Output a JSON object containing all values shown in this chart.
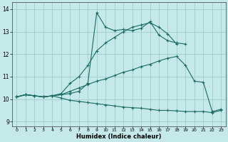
{
  "xlabel": "Humidex (Indice chaleur)",
  "background_color": "#c5e8e8",
  "grid_color": "#a0cccc",
  "line_color": "#1a6b62",
  "xlim": [
    -0.5,
    23.5
  ],
  "ylim": [
    8.8,
    14.3
  ],
  "yticks": [
    9,
    10,
    11,
    12,
    13,
    14
  ],
  "xticks": [
    0,
    1,
    2,
    3,
    4,
    5,
    6,
    7,
    8,
    9,
    10,
    11,
    12,
    13,
    14,
    15,
    16,
    17,
    18,
    19,
    20,
    21,
    22,
    23
  ],
  "lines": [
    {
      "x": [
        0,
        1,
        2,
        3,
        4,
        5,
        6,
        7,
        8,
        9,
        10,
        11,
        12,
        13,
        14,
        15,
        16,
        17,
        18,
        19
      ],
      "y": [
        10.1,
        10.2,
        10.15,
        10.1,
        10.15,
        10.2,
        10.25,
        10.35,
        10.7,
        13.85,
        13.2,
        13.05,
        13.1,
        13.05,
        13.15,
        13.45,
        12.85,
        12.6,
        12.5,
        12.45
      ]
    },
    {
      "x": [
        0,
        1,
        2,
        3,
        4,
        5,
        6,
        7,
        8,
        9,
        10,
        11,
        12,
        13,
        14,
        15,
        16,
        17,
        18
      ],
      "y": [
        10.1,
        10.2,
        10.15,
        10.1,
        10.15,
        10.25,
        10.7,
        11.0,
        11.5,
        12.15,
        12.5,
        12.75,
        13.0,
        13.2,
        13.3,
        13.4,
        13.2,
        12.9,
        12.45
      ]
    },
    {
      "x": [
        0,
        1,
        2,
        3,
        4,
        5,
        6,
        7,
        8,
        9,
        10,
        11,
        12,
        13,
        14,
        15,
        16,
        17,
        18,
        19,
        20,
        21,
        22,
        23
      ],
      "y": [
        10.1,
        10.2,
        10.15,
        10.1,
        10.15,
        10.2,
        10.35,
        10.5,
        10.65,
        10.8,
        10.9,
        11.05,
        11.2,
        11.3,
        11.45,
        11.55,
        11.7,
        11.82,
        11.9,
        11.5,
        10.8,
        10.75,
        9.45,
        9.55
      ]
    },
    {
      "x": [
        0,
        1,
        2,
        3,
        4,
        5,
        6,
        7,
        8,
        9,
        10,
        11,
        12,
        13,
        14,
        15,
        16,
        17,
        18,
        19,
        20,
        21,
        22,
        23
      ],
      "y": [
        10.1,
        10.2,
        10.15,
        10.1,
        10.15,
        10.05,
        9.95,
        9.9,
        9.85,
        9.8,
        9.75,
        9.7,
        9.65,
        9.62,
        9.6,
        9.55,
        9.5,
        9.5,
        9.48,
        9.45,
        9.45,
        9.45,
        9.4,
        9.5
      ]
    }
  ]
}
